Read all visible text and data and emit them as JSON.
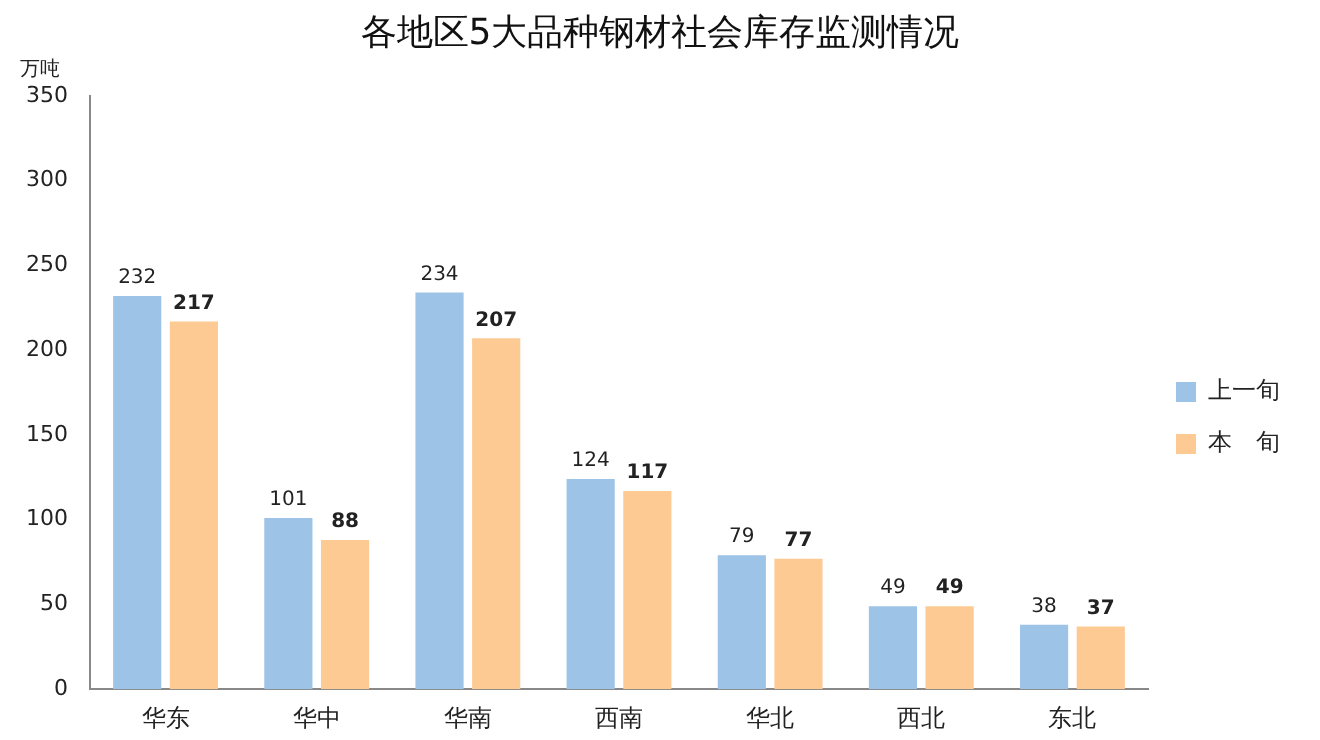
{
  "chart_data": {
    "type": "bar",
    "title": "各地区5大品种钢材社会库存监测情况",
    "ylabel": "万吨",
    "categories": [
      "华东",
      "华中",
      "华南",
      "西南",
      "华北",
      "西北",
      "东北"
    ],
    "series": [
      {
        "name": "上一旬",
        "color": "#9dc3e6",
        "values": [
          232,
          101,
          234,
          124,
          79,
          49,
          38
        ]
      },
      {
        "name": "本　旬",
        "color": "#fdca93",
        "values": [
          217,
          88,
          207,
          117,
          77,
          49,
          37
        ]
      }
    ],
    "ylim": [
      0,
      350
    ],
    "yticks": [
      0,
      50,
      100,
      150,
      200,
      250,
      300,
      350
    ],
    "grid": false,
    "legend": "right",
    "data_labels": true
  }
}
